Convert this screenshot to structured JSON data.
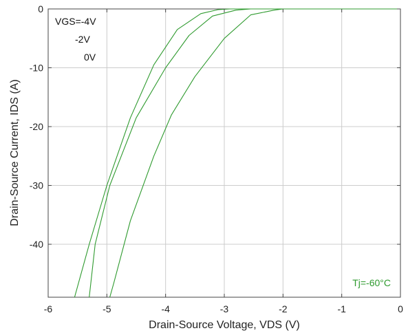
{
  "chart_data": {
    "type": "line",
    "xlabel": "Drain-Source Voltage, VDS (V)",
    "ylabel": "Drain-Source Current, IDS (A)",
    "xlim": [
      -6,
      0
    ],
    "ylim": [
      -49,
      0
    ],
    "xticks": [
      -6,
      -5,
      -4,
      -3,
      -2,
      -1,
      0
    ],
    "yticks": [
      0,
      -10,
      -20,
      -30,
      -40
    ],
    "grid": true,
    "line_color": "#2e9a2e",
    "legend": {
      "placement": "top-left",
      "entries": [
        "VGS=-4V",
        "-2V",
        "0V"
      ]
    },
    "annotation": {
      "text": "Tj=-60°C",
      "color": "#2e9a2e"
    },
    "series": [
      {
        "x": [
          -5.55,
          -5.3,
          -5.0,
          -4.6,
          -4.2,
          -3.8,
          -3.4,
          -3.1,
          -2.9,
          -2.75,
          -2.5,
          -2.0,
          0.0
        ],
        "y": [
          -49,
          -40,
          -30,
          -18.5,
          -9.5,
          -3.5,
          -0.8,
          -0.1,
          0,
          0,
          0,
          0,
          0
        ]
      },
      {
        "x": [
          -5.3,
          -5.2,
          -4.95,
          -4.5,
          -4.0,
          -3.6,
          -3.2,
          -2.8,
          -2.55,
          -2.3,
          -2.0,
          0.0
        ],
        "y": [
          -49,
          -40,
          -30,
          -18.5,
          -10,
          -4.5,
          -1.2,
          -0.2,
          0,
          0,
          0,
          0
        ]
      },
      {
        "x": [
          -4.95,
          -4.88,
          -4.6,
          -4.2,
          -3.9,
          -3.5,
          -3.0,
          -2.55,
          -2.3,
          -2.15,
          -2.0,
          0.0
        ],
        "y": [
          -49,
          -46.5,
          -36,
          -25,
          -18,
          -11.5,
          -5,
          -1.0,
          -0.5,
          -0.2,
          0,
          0
        ]
      }
    ]
  }
}
